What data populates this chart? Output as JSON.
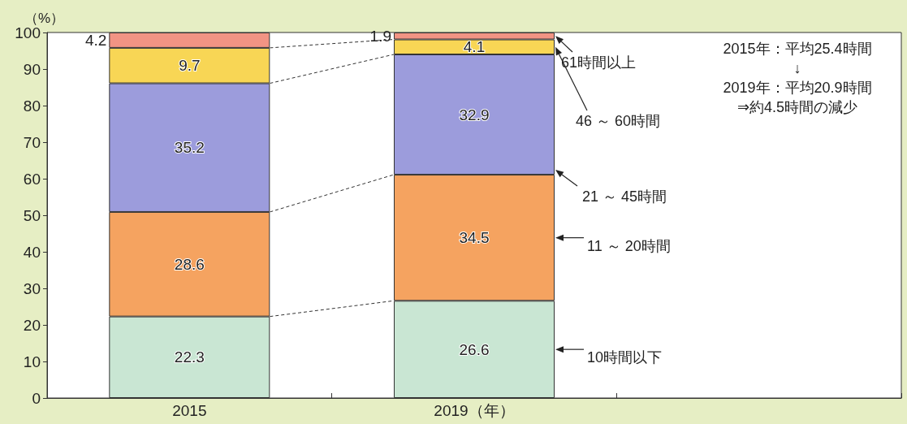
{
  "chart_data": {
    "type": "bar",
    "stacked": true,
    "categories": [
      "2015",
      "2019（年）",
      null
    ],
    "series": [
      {
        "name": "10時間以下",
        "color": "#c9e6d3",
        "values": [
          22.3,
          26.6,
          null
        ]
      },
      {
        "name": "11 ～ 20時間",
        "color": "#f5a360",
        "values": [
          28.6,
          34.5,
          null
        ]
      },
      {
        "name": "21 ～ 45時間",
        "color": "#9c9cdc",
        "values": [
          35.2,
          32.9,
          null
        ]
      },
      {
        "name": "46 ～ 60時間",
        "color": "#f8d655",
        "values": [
          9.7,
          4.1,
          null
        ]
      },
      {
        "name": "61時間以上",
        "color": "#f29484",
        "values": [
          4.2,
          1.9,
          null
        ]
      }
    ],
    "data_labels": true,
    "ylabel": "（%）",
    "ylim": [
      0,
      100
    ],
    "yticks": [
      0,
      10,
      20,
      30,
      40,
      50,
      60,
      70,
      80,
      90,
      100
    ],
    "grid": false,
    "legend": false,
    "annotations": [
      "2015年：平均25.4時間",
      "↓",
      "2019年：平均20.9時間",
      "⇒約4.5時間の減少"
    ]
  }
}
